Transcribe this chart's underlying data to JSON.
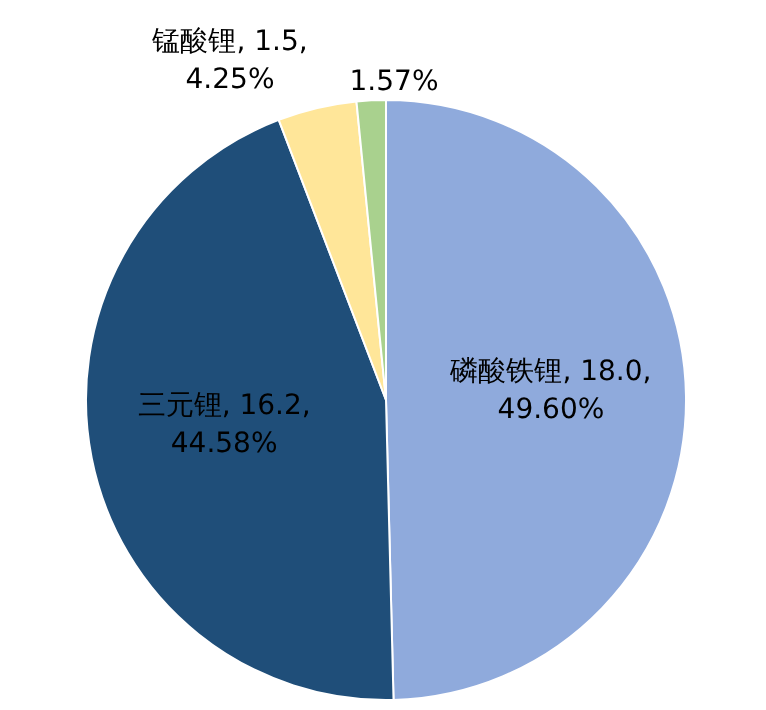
{
  "chart_data": {
    "type": "pie",
    "categories": [
      "磷酸铁锂",
      "三元锂",
      "锰酸锂",
      null
    ],
    "values": [
      49.6,
      44.58,
      4.25,
      1.57
    ],
    "colors": [
      "#8faadc",
      "#1f4e79",
      "#ffe699",
      "#a9d18e"
    ],
    "value_labels": [
      "18.0, 49.60%",
      "16.2, 44.58%",
      "1.5, 4.25%",
      "1.57%"
    ]
  }
}
